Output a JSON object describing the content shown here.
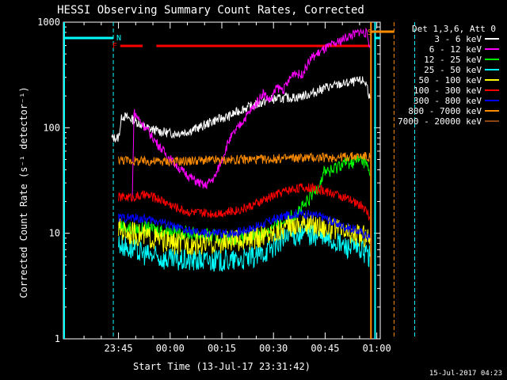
{
  "chart_data": {
    "type": "line",
    "title": "HESSI Observing Summary Count Rates, Corrected",
    "xlabel": "Start Time (13-Jul-17 23:31:42)",
    "ylabel": "Corrected Count Rate (s⁻¹ detector⁻¹)",
    "y_scale": "log",
    "ylim": [
      1,
      1000
    ],
    "x_ticks": [
      "23:45",
      "00:00",
      "00:15",
      "00:30",
      "00:45",
      "01:00"
    ],
    "y_ticks": [
      "1",
      "10",
      "100",
      "1000"
    ],
    "xlim_minutes": [
      -16,
      76
    ],
    "legend_title": "Det 1,3,6, Att 0",
    "legend_position": "right",
    "timestamp": "15-Jul-2017 04:23",
    "series": [
      {
        "name": "3 - 6 keV",
        "color": "#ffffff",
        "points": [
          [
            -2,
            80
          ],
          [
            0,
            80
          ],
          [
            1,
            130
          ],
          [
            4,
            120
          ],
          [
            8,
            100
          ],
          [
            12,
            92
          ],
          [
            16,
            88
          ],
          [
            20,
            92
          ],
          [
            24,
            102
          ],
          [
            28,
            118
          ],
          [
            32,
            128
          ],
          [
            36,
            150
          ],
          [
            40,
            165
          ],
          [
            44,
            185
          ],
          [
            48,
            190
          ],
          [
            52,
            195
          ],
          [
            56,
            210
          ],
          [
            60,
            240
          ],
          [
            64,
            255
          ],
          [
            68,
            270
          ],
          [
            71,
            280
          ],
          [
            72,
            260
          ],
          [
            73,
            190
          ]
        ]
      },
      {
        "name": "6 - 12 keV",
        "color": "#ff00ff",
        "points": [
          [
            4,
            20
          ],
          [
            4.5,
            140
          ],
          [
            6,
            120
          ],
          [
            10,
            80
          ],
          [
            14,
            55
          ],
          [
            18,
            40
          ],
          [
            22,
            32
          ],
          [
            25,
            28
          ],
          [
            28,
            34
          ],
          [
            30,
            50
          ],
          [
            32,
            75
          ],
          [
            36,
            115
          ],
          [
            40,
            170
          ],
          [
            42,
            215
          ],
          [
            44,
            180
          ],
          [
            46,
            240
          ],
          [
            48,
            230
          ],
          [
            51,
            340
          ],
          [
            53,
            310
          ],
          [
            56,
            460
          ],
          [
            60,
            560
          ],
          [
            64,
            650
          ],
          [
            66,
            720
          ],
          [
            69,
            780
          ],
          [
            70,
            820
          ],
          [
            72,
            780
          ],
          [
            73,
            600
          ]
        ]
      },
      {
        "name": "12 - 25 keV",
        "color": "#00ff00",
        "points": [
          [
            0,
            12
          ],
          [
            4,
            11
          ],
          [
            10,
            11
          ],
          [
            20,
            10
          ],
          [
            30,
            9
          ],
          [
            36,
            9
          ],
          [
            42,
            10
          ],
          [
            48,
            13
          ],
          [
            54,
            18
          ],
          [
            58,
            28
          ],
          [
            60,
            40
          ],
          [
            62,
            38
          ],
          [
            64,
            45
          ],
          [
            68,
            48
          ],
          [
            71,
            50
          ],
          [
            72,
            45
          ],
          [
            73,
            35
          ]
        ]
      },
      {
        "name": "25 - 50 keV",
        "color": "#00ffff",
        "points": [
          [
            0,
            8
          ],
          [
            4,
            7
          ],
          [
            10,
            6
          ],
          [
            16,
            5.5
          ],
          [
            22,
            5.5
          ],
          [
            28,
            5.5
          ],
          [
            34,
            5.5
          ],
          [
            40,
            6
          ],
          [
            46,
            8
          ],
          [
            50,
            9.5
          ],
          [
            54,
            10
          ],
          [
            58,
            9.5
          ],
          [
            62,
            8.5
          ],
          [
            66,
            7.5
          ],
          [
            70,
            7
          ],
          [
            72,
            6.5
          ],
          [
            73,
            6
          ]
        ]
      },
      {
        "name": "50 - 100 keV",
        "color": "#ffff00",
        "points": [
          [
            0,
            11
          ],
          [
            4,
            10
          ],
          [
            10,
            9
          ],
          [
            16,
            8
          ],
          [
            22,
            8
          ],
          [
            28,
            8
          ],
          [
            34,
            8.5
          ],
          [
            40,
            9
          ],
          [
            46,
            10.5
          ],
          [
            50,
            12
          ],
          [
            54,
            12.5
          ],
          [
            58,
            12
          ],
          [
            62,
            11
          ],
          [
            66,
            10
          ],
          [
            70,
            9.5
          ],
          [
            73,
            9
          ]
        ]
      },
      {
        "name": "100 - 300 keV",
        "color": "#ff0000",
        "points": [
          [
            0,
            22
          ],
          [
            4,
            22
          ],
          [
            8,
            23
          ],
          [
            12,
            21
          ],
          [
            16,
            18
          ],
          [
            20,
            16
          ],
          [
            24,
            15.5
          ],
          [
            28,
            15.5
          ],
          [
            32,
            16
          ],
          [
            36,
            17
          ],
          [
            40,
            19
          ],
          [
            44,
            22
          ],
          [
            48,
            25
          ],
          [
            52,
            27
          ],
          [
            56,
            27
          ],
          [
            60,
            25
          ],
          [
            64,
            23
          ],
          [
            68,
            20
          ],
          [
            71,
            18
          ],
          [
            73,
            14
          ]
        ]
      },
      {
        "name": "300 - 800 keV",
        "color": "#0000ff",
        "points": [
          [
            0,
            14
          ],
          [
            4,
            14
          ],
          [
            8,
            13.5
          ],
          [
            12,
            13
          ],
          [
            16,
            11.5
          ],
          [
            20,
            10.5
          ],
          [
            24,
            10
          ],
          [
            28,
            10
          ],
          [
            32,
            10
          ],
          [
            36,
            10.5
          ],
          [
            40,
            11.5
          ],
          [
            44,
            13
          ],
          [
            48,
            14.5
          ],
          [
            52,
            15.5
          ],
          [
            56,
            15
          ],
          [
            60,
            14
          ],
          [
            64,
            12
          ],
          [
            68,
            11
          ],
          [
            71,
            10
          ],
          [
            73,
            9
          ]
        ]
      },
      {
        "name": "800 - 7000 keV",
        "color": "#ff8c00",
        "points": [
          [
            0,
            50
          ],
          [
            6,
            48
          ],
          [
            12,
            48
          ],
          [
            18,
            48
          ],
          [
            24,
            49
          ],
          [
            30,
            49
          ],
          [
            36,
            50
          ],
          [
            42,
            50
          ],
          [
            48,
            51
          ],
          [
            54,
            52
          ],
          [
            60,
            52
          ],
          [
            66,
            53
          ],
          [
            71,
            54
          ],
          [
            73,
            52
          ]
        ]
      },
      {
        "name": "7000 - 20000 keV",
        "color": "#8b4513",
        "points": []
      }
    ],
    "markers": {
      "N": {
        "label": "N",
        "color": "#ffffff"
      },
      "F": {
        "label": "F",
        "color": "#ff0000"
      },
      "S": {
        "label": "S",
        "color": "#ff8c00"
      }
    },
    "bar_colors": {
      "night": "#00ffff",
      "flare": "#ff0000",
      "saa": "#ff8c00"
    }
  }
}
